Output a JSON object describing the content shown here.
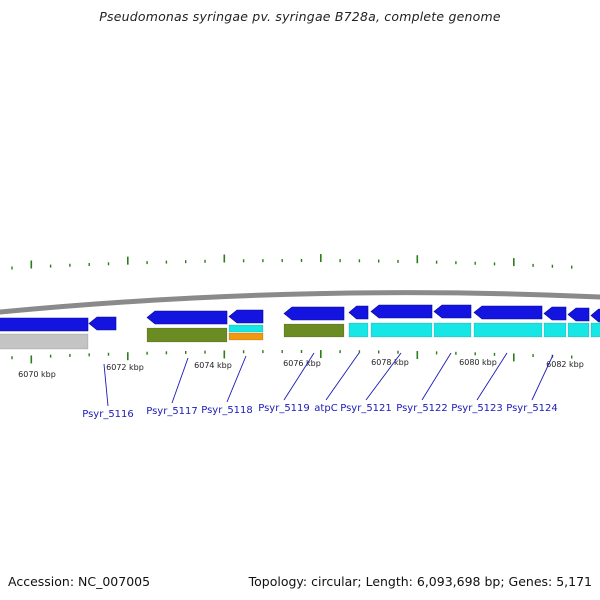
{
  "title": "Pseudomonas syringae pv. syringae B728a, complete genome",
  "footer": {
    "accession": "Accession: NC_007005",
    "summary": "Topology: circular; Length: 6,093,698 bp; Genes: 5,171"
  },
  "colors": {
    "backbone": "#8a8a8a",
    "tick": "#2e7d1a",
    "cds_forward": "#1414e0",
    "rna_gray": "#c4c4c4",
    "function_green": "#6b8c23",
    "function_cyan": "#17e6e6",
    "function_orange": "#f09a10",
    "gene_label": "#1a1ab8"
  },
  "scale_labels": [
    "6070 kbp",
    "6072 kbp",
    "6074 kbp",
    "6076 kbp",
    "6078 kbp",
    "6080 kbp",
    "6082 kbp"
  ],
  "gene_labels": [
    "Psyr_5116",
    "Psyr_5117",
    "Psyr_5118",
    "Psyr_5119",
    "atpC",
    "Psyr_5121",
    "Psyr_5122",
    "Psyr_5123",
    "Psyr_5124"
  ]
}
